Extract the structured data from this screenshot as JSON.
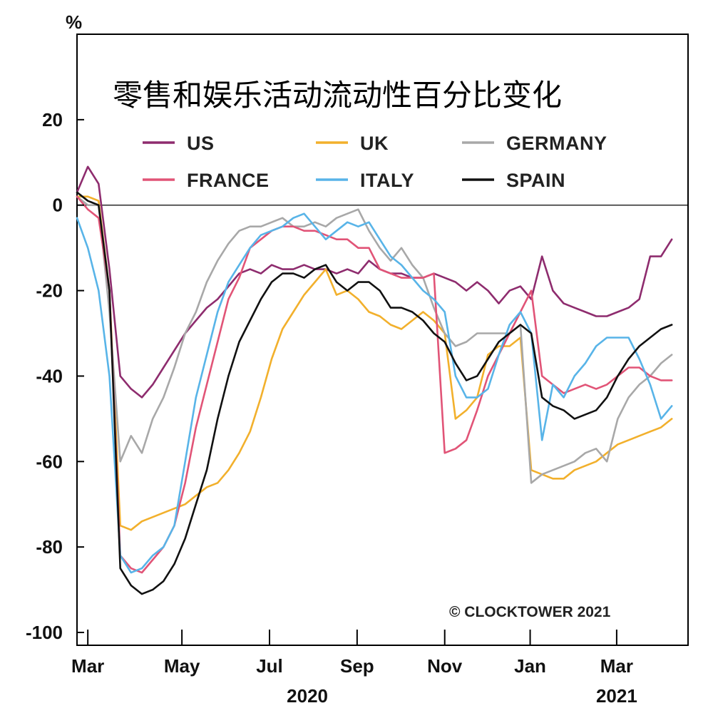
{
  "chart_data": {
    "type": "line",
    "title": "零售和娱乐活动流动性百分比变化",
    "ylabel": "%",
    "ylim": [
      -103,
      40
    ],
    "xlim": [
      0,
      56.5
    ],
    "yticks": [
      20,
      0,
      -20,
      -40,
      -60,
      -80,
      -100
    ],
    "xticks": [
      {
        "label": "Mar",
        "x": 1
      },
      {
        "label": "May",
        "x": 9.7
      },
      {
        "label": "Jul",
        "x": 17.8
      },
      {
        "label": "Sep",
        "x": 25.9
      },
      {
        "label": "Nov",
        "x": 34
      },
      {
        "label": "Jan",
        "x": 41.9
      },
      {
        "label": "Mar",
        "x": 49.9
      }
    ],
    "year_labels": [
      {
        "label": "2020",
        "x": 21.3
      },
      {
        "label": "2021",
        "x": 49.9
      }
    ],
    "zero_line": true,
    "legend_position": "top",
    "annotation": "© CLOCKTOWER 2021",
    "series": [
      {
        "name": "US",
        "color": "#8e2c6e",
        "x": [
          0,
          1,
          2,
          3,
          4,
          5,
          6,
          7,
          8,
          9,
          10,
          11,
          12,
          13,
          14,
          15,
          16,
          17,
          18,
          19,
          20,
          21,
          22,
          23,
          24,
          25,
          26,
          27,
          28,
          29,
          30,
          31,
          32,
          33,
          34,
          35,
          36,
          37,
          38,
          39,
          40,
          41,
          42,
          43,
          44,
          45,
          46,
          47,
          48,
          49,
          50,
          51,
          52,
          53,
          54,
          55
        ],
        "values": [
          3,
          9,
          5,
          -15,
          -40,
          -43,
          -45,
          -42,
          -38,
          -34,
          -30,
          -27,
          -24,
          -22,
          -19,
          -16,
          -15,
          -16,
          -14,
          -15,
          -15,
          -14,
          -15,
          -15,
          -16,
          -15,
          -16,
          -13,
          -15,
          -16,
          -16,
          -17,
          -17,
          -16,
          -17,
          -18,
          -20,
          -18,
          -20,
          -23,
          -20,
          -19,
          -22,
          -12,
          -20,
          -23,
          -24,
          -25,
          -26,
          -26,
          -25,
          -24,
          -22,
          -12,
          -12,
          -8
        ]
      },
      {
        "name": "UK",
        "color": "#f2b02c",
        "x": [
          0,
          1,
          2,
          3,
          4,
          5,
          6,
          7,
          8,
          9,
          10,
          11,
          12,
          13,
          14,
          15,
          16,
          17,
          18,
          19,
          20,
          21,
          22,
          23,
          24,
          25,
          26,
          27,
          28,
          29,
          30,
          31,
          32,
          33,
          34,
          35,
          36,
          37,
          38,
          39,
          40,
          41,
          42,
          43,
          44,
          45,
          46,
          47,
          48,
          49,
          50,
          51,
          52,
          53,
          54,
          55
        ],
        "values": [
          2,
          2,
          1,
          -20,
          -75,
          -76,
          -74,
          -73,
          -72,
          -71,
          -70,
          -68,
          -66,
          -65,
          -62,
          -58,
          -53,
          -45,
          -36,
          -29,
          -25,
          -21,
          -18,
          -15,
          -21,
          -20,
          -22,
          -25,
          -26,
          -28,
          -29,
          -27,
          -25,
          -27,
          -30,
          -50,
          -48,
          -45,
          -35,
          -33,
          -33,
          -31,
          -62,
          -63,
          -64,
          -64,
          -62,
          -61,
          -60,
          -58,
          -56,
          -55,
          -54,
          -53,
          -52,
          -50
        ]
      },
      {
        "name": "GERMANY",
        "color": "#a8a8a8",
        "x": [
          0,
          1,
          2,
          3,
          4,
          5,
          6,
          7,
          8,
          9,
          10,
          11,
          12,
          13,
          14,
          15,
          16,
          17,
          18,
          19,
          20,
          21,
          22,
          23,
          24,
          25,
          26,
          27,
          28,
          29,
          30,
          31,
          32,
          33,
          34,
          35,
          36,
          37,
          38,
          39,
          40,
          41,
          42,
          43,
          44,
          45,
          46,
          47,
          48,
          49,
          50,
          51,
          52,
          53,
          54,
          55
        ],
        "values": [
          2,
          0,
          0,
          -25,
          -60,
          -54,
          -58,
          -50,
          -45,
          -38,
          -30,
          -25,
          -18,
          -13,
          -9,
          -6,
          -5,
          -5,
          -4,
          -3,
          -5,
          -5,
          -4,
          -5,
          -3,
          -2,
          -1,
          -6,
          -10,
          -13,
          -10,
          -14,
          -17,
          -24,
          -30,
          -33,
          -32,
          -30,
          -30,
          -30,
          -30,
          -28,
          -65,
          -63,
          -62,
          -61,
          -60,
          -58,
          -57,
          -60,
          -50,
          -45,
          -42,
          -40,
          -37,
          -35
        ]
      },
      {
        "name": "FRANCE",
        "color": "#e15477",
        "x": [
          0,
          1,
          2,
          3,
          4,
          5,
          6,
          7,
          8,
          9,
          10,
          11,
          12,
          13,
          14,
          15,
          16,
          17,
          18,
          19,
          20,
          21,
          22,
          23,
          24,
          25,
          26,
          27,
          28,
          29,
          30,
          31,
          32,
          33,
          34,
          35,
          36,
          37,
          38,
          39,
          40,
          41,
          42,
          43,
          44,
          45,
          46,
          47,
          48,
          49,
          50,
          51,
          52,
          53,
          54,
          55
        ],
        "values": [
          2,
          -1,
          -3,
          -20,
          -82,
          -85,
          -86,
          -83,
          -80,
          -75,
          -65,
          -52,
          -42,
          -32,
          -22,
          -17,
          -10,
          -8,
          -6,
          -5,
          -5,
          -6,
          -6,
          -7,
          -8,
          -8,
          -10,
          -10,
          -15,
          -16,
          -17,
          -17,
          -17,
          -16,
          -58,
          -57,
          -55,
          -48,
          -40,
          -35,
          -30,
          -25,
          -20,
          -40,
          -42,
          -44,
          -43,
          -42,
          -43,
          -42,
          -40,
          -38,
          -38,
          -40,
          -41,
          -41
        ]
      },
      {
        "name": "ITALY",
        "color": "#58b4e8",
        "x": [
          0,
          1,
          2,
          3,
          4,
          5,
          6,
          7,
          8,
          9,
          10,
          11,
          12,
          13,
          14,
          15,
          16,
          17,
          18,
          19,
          20,
          21,
          22,
          23,
          24,
          25,
          26,
          27,
          28,
          29,
          30,
          31,
          32,
          33,
          34,
          35,
          36,
          37,
          38,
          39,
          40,
          41,
          42,
          43,
          44,
          45,
          46,
          47,
          48,
          49,
          50,
          51,
          52,
          53,
          54,
          55
        ],
        "values": [
          -3,
          -10,
          -20,
          -40,
          -82,
          -86,
          -85,
          -82,
          -80,
          -75,
          -60,
          -45,
          -35,
          -25,
          -18,
          -14,
          -10,
          -7,
          -6,
          -5,
          -3,
          -2,
          -5,
          -8,
          -6,
          -4,
          -5,
          -4,
          -8,
          -12,
          -14,
          -17,
          -20,
          -22,
          -25,
          -40,
          -45,
          -45,
          -43,
          -35,
          -28,
          -25,
          -30,
          -55,
          -42,
          -45,
          -40,
          -37,
          -33,
          -31,
          -31,
          -31,
          -36,
          -42,
          -50,
          -47
        ]
      },
      {
        "name": "SPAIN",
        "color": "#111111",
        "x": [
          0,
          1,
          2,
          3,
          4,
          5,
          6,
          7,
          8,
          9,
          10,
          11,
          12,
          13,
          14,
          15,
          16,
          17,
          18,
          19,
          20,
          21,
          22,
          23,
          24,
          25,
          26,
          27,
          28,
          29,
          30,
          31,
          32,
          33,
          34,
          35,
          36,
          37,
          38,
          39,
          40,
          41,
          42,
          43,
          44,
          45,
          46,
          47,
          48,
          49,
          50,
          51,
          52,
          53,
          54,
          55
        ],
        "values": [
          3,
          1,
          0,
          -20,
          -85,
          -89,
          -91,
          -90,
          -88,
          -84,
          -78,
          -70,
          -62,
          -50,
          -40,
          -32,
          -27,
          -22,
          -18,
          -16,
          -16,
          -17,
          -15,
          -14,
          -18,
          -20,
          -18,
          -18,
          -20,
          -24,
          -24,
          -25,
          -27,
          -30,
          -32,
          -37,
          -41,
          -40,
          -36,
          -32,
          -30,
          -28,
          -30,
          -45,
          -47,
          -48,
          -50,
          -49,
          -48,
          -45,
          -40,
          -36,
          -33,
          -31,
          -29,
          -28
        ]
      }
    ]
  }
}
